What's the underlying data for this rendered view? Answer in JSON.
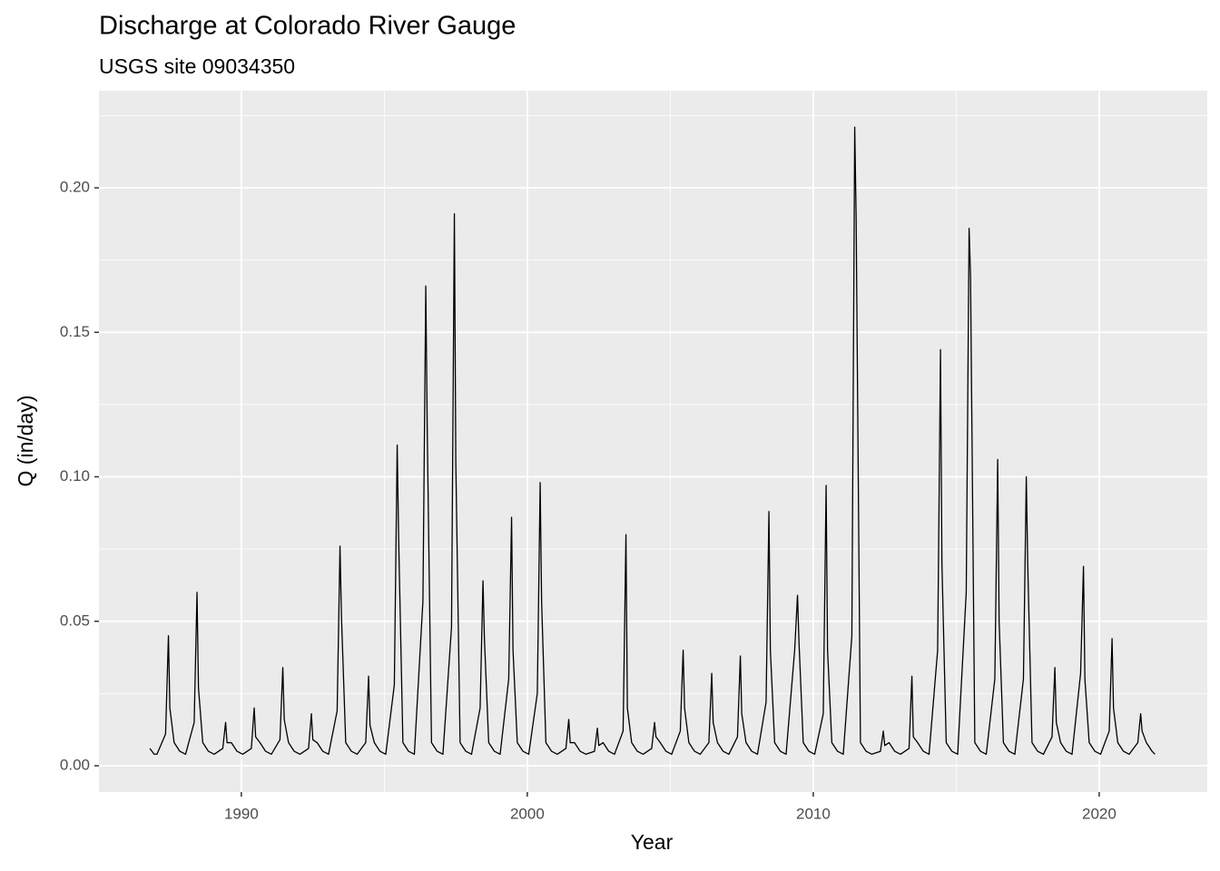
{
  "chart_data": {
    "type": "line",
    "title": "Discharge at Colorado River Gauge",
    "subtitle": "USGS site 09034350",
    "x_label": "Year",
    "y_label": "Q (in/day)",
    "xlim": [
      1985.02,
      2023.78
    ],
    "ylim": [
      -0.0091,
      0.2336
    ],
    "xticks": [
      1990,
      2000,
      2010,
      2020
    ],
    "yticks": [
      {
        "value": 0,
        "label": "0.00"
      },
      {
        "value": 0.05,
        "label": "0.05"
      },
      {
        "value": 0.1,
        "label": "0.10"
      },
      {
        "value": 0.15,
        "label": "0.15"
      },
      {
        "value": 0.2,
        "label": "0.20"
      }
    ],
    "x_minor_grid": [
      1985,
      1995,
      2005,
      2015
    ],
    "y_minor_grid": [
      0.025,
      0.075,
      0.125,
      0.175,
      0.225
    ],
    "grid": true,
    "series": [
      {
        "name": "Q",
        "color": "#000000",
        "x": [
          1986.8,
          1986.95,
          1987.05,
          1987.35,
          1987.45,
          1987.5,
          1987.65,
          1987.85,
          1988.05,
          1988.35,
          1988.45,
          1988.5,
          1988.65,
          1988.85,
          1989.05,
          1989.35,
          1989.45,
          1989.5,
          1989.65,
          1989.85,
          1990.05,
          1990.35,
          1990.45,
          1990.5,
          1990.65,
          1990.85,
          1991.05,
          1991.35,
          1991.45,
          1991.5,
          1991.65,
          1991.85,
          1992.05,
          1992.35,
          1992.45,
          1992.5,
          1992.65,
          1992.85,
          1993.05,
          1993.35,
          1993.45,
          1993.5,
          1993.65,
          1993.85,
          1994.05,
          1994.35,
          1994.45,
          1994.5,
          1994.65,
          1994.85,
          1995.05,
          1995.35,
          1995.45,
          1995.5,
          1995.65,
          1995.85,
          1996.05,
          1996.35,
          1996.45,
          1996.5,
          1996.65,
          1996.85,
          1997.05,
          1997.35,
          1997.45,
          1997.5,
          1997.65,
          1997.85,
          1998.05,
          1998.35,
          1998.45,
          1998.5,
          1998.65,
          1998.85,
          1999.05,
          1999.35,
          1999.45,
          1999.5,
          1999.65,
          1999.85,
          2000.05,
          2000.35,
          2000.45,
          2000.5,
          2000.65,
          2000.85,
          2001.05,
          2001.35,
          2001.45,
          2001.5,
          2001.65,
          2001.85,
          2002.05,
          2002.35,
          2002.45,
          2002.5,
          2002.65,
          2002.85,
          2003.05,
          2003.35,
          2003.45,
          2003.5,
          2003.65,
          2003.85,
          2004.05,
          2004.35,
          2004.45,
          2004.5,
          2004.65,
          2004.85,
          2005.05,
          2005.35,
          2005.45,
          2005.5,
          2005.65,
          2005.85,
          2006.05,
          2006.35,
          2006.45,
          2006.5,
          2006.65,
          2006.85,
          2007.05,
          2007.35,
          2007.45,
          2007.5,
          2007.65,
          2007.85,
          2008.05,
          2008.35,
          2008.45,
          2008.5,
          2008.65,
          2008.85,
          2009.05,
          2009.35,
          2009.45,
          2009.5,
          2009.65,
          2009.85,
          2010.05,
          2010.35,
          2010.45,
          2010.5,
          2010.65,
          2010.85,
          2011.05,
          2011.35,
          2011.45,
          2011.5,
          2011.65,
          2011.85,
          2012.05,
          2012.35,
          2012.45,
          2012.5,
          2012.65,
          2012.85,
          2013.05,
          2013.35,
          2013.45,
          2013.5,
          2013.65,
          2013.85,
          2014.05,
          2014.35,
          2014.45,
          2014.5,
          2014.65,
          2014.85,
          2015.05,
          2015.35,
          2015.45,
          2015.5,
          2015.65,
          2015.85,
          2016.05,
          2016.35,
          2016.45,
          2016.5,
          2016.65,
          2016.85,
          2017.05,
          2017.35,
          2017.45,
          2017.5,
          2017.65,
          2017.85,
          2018.05,
          2018.35,
          2018.45,
          2018.5,
          2018.65,
          2018.85,
          2019.05,
          2019.35,
          2019.45,
          2019.5,
          2019.65,
          2019.85,
          2020.05,
          2020.35,
          2020.45,
          2020.5,
          2020.65,
          2020.85,
          2021.05,
          2021.35,
          2021.45,
          2021.5,
          2021.65,
          2021.85,
          2021.95
        ],
        "values": [
          0.006,
          0.004,
          0.004,
          0.011,
          0.045,
          0.02,
          0.008,
          0.005,
          0.004,
          0.015,
          0.06,
          0.027,
          0.008,
          0.005,
          0.004,
          0.006,
          0.015,
          0.008,
          0.008,
          0.005,
          0.004,
          0.006,
          0.02,
          0.01,
          0.008,
          0.005,
          0.004,
          0.009,
          0.034,
          0.016,
          0.008,
          0.005,
          0.004,
          0.006,
          0.018,
          0.009,
          0.008,
          0.005,
          0.004,
          0.019,
          0.076,
          0.052,
          0.008,
          0.005,
          0.004,
          0.008,
          0.031,
          0.014,
          0.008,
          0.005,
          0.004,
          0.028,
          0.111,
          0.079,
          0.008,
          0.005,
          0.004,
          0.057,
          0.166,
          0.117,
          0.008,
          0.005,
          0.004,
          0.048,
          0.191,
          0.105,
          0.008,
          0.005,
          0.004,
          0.02,
          0.064,
          0.044,
          0.008,
          0.005,
          0.004,
          0.03,
          0.086,
          0.04,
          0.008,
          0.005,
          0.004,
          0.025,
          0.098,
          0.057,
          0.008,
          0.005,
          0.004,
          0.006,
          0.016,
          0.008,
          0.008,
          0.005,
          0.004,
          0.005,
          0.013,
          0.007,
          0.008,
          0.005,
          0.004,
          0.012,
          0.08,
          0.02,
          0.008,
          0.005,
          0.004,
          0.006,
          0.015,
          0.01,
          0.008,
          0.005,
          0.004,
          0.012,
          0.04,
          0.02,
          0.008,
          0.005,
          0.004,
          0.008,
          0.032,
          0.015,
          0.008,
          0.005,
          0.004,
          0.01,
          0.038,
          0.018,
          0.008,
          0.005,
          0.004,
          0.022,
          0.088,
          0.04,
          0.008,
          0.005,
          0.004,
          0.04,
          0.059,
          0.043,
          0.008,
          0.005,
          0.004,
          0.018,
          0.097,
          0.04,
          0.008,
          0.005,
          0.004,
          0.045,
          0.221,
          0.19,
          0.008,
          0.005,
          0.004,
          0.005,
          0.012,
          0.007,
          0.008,
          0.005,
          0.004,
          0.006,
          0.031,
          0.01,
          0.008,
          0.005,
          0.004,
          0.04,
          0.144,
          0.07,
          0.008,
          0.005,
          0.004,
          0.06,
          0.186,
          0.17,
          0.008,
          0.005,
          0.004,
          0.03,
          0.106,
          0.05,
          0.008,
          0.005,
          0.004,
          0.03,
          0.1,
          0.07,
          0.008,
          0.005,
          0.004,
          0.01,
          0.034,
          0.015,
          0.008,
          0.005,
          0.004,
          0.032,
          0.069,
          0.03,
          0.008,
          0.005,
          0.004,
          0.012,
          0.044,
          0.02,
          0.008,
          0.005,
          0.004,
          0.008,
          0.018,
          0.012,
          0.008,
          0.005,
          0.004
        ]
      }
    ]
  }
}
